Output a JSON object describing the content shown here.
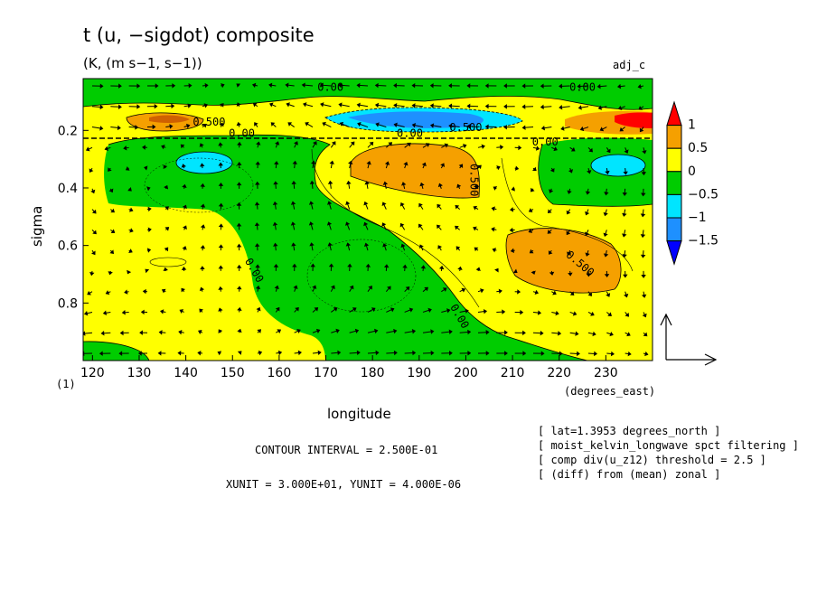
{
  "header": {
    "title": "t (u, −sigdot) composite",
    "subtitle": "(K, (m s−1, s−1))",
    "tag": "adj_c"
  },
  "footer": {
    "contour_interval": "CONTOUR INTERVAL = 2.500E-01",
    "units": "XUNIT = 3.000E+01, YUNIT = 4.000E-06",
    "notes": [
      "[ lat=1.3953 degrees_north ]",
      "[ moist_kelvin_longwave spct filtering ]",
      "[ comp div(u_z12) threshold = 2.5 ]",
      "[ (diff) from (mean) zonal ]"
    ]
  },
  "chart_data": {
    "type": "heatmap",
    "title": "t (u, −sigdot) composite",
    "subtitle": "(K, (m s−1, s−1))",
    "xlabel": "longitude",
    "xunit_label": "(degrees_east)",
    "ylabel": "sigma",
    "y_corner_label": "(1)",
    "xlim": [
      118,
      240
    ],
    "ylim": [
      0.02,
      1.0
    ],
    "y_inverted": true,
    "xticks": [
      120,
      130,
      140,
      150,
      160,
      170,
      180,
      190,
      200,
      210,
      220,
      230
    ],
    "yticks": [
      0.2,
      0.4,
      0.6,
      0.8
    ],
    "contour_interval": 0.25,
    "contour_labels": [
      {
        "text": "0.00",
        "x": 171,
        "y": 0.05
      },
      {
        "text": "0.00",
        "x": 225,
        "y": 0.05
      },
      {
        "text": "0.500",
        "x": 145,
        "y": 0.17
      },
      {
        "text": "0.00",
        "x": 152,
        "y": 0.21
      },
      {
        "text": "0.00",
        "x": 188,
        "y": 0.21
      },
      {
        "text": "0.500",
        "x": 200,
        "y": 0.19
      },
      {
        "text": "0.00",
        "x": 217,
        "y": 0.24
      },
      {
        "text": "0.500",
        "x": 201,
        "y": 0.36
      },
      {
        "text": "0.00",
        "x": 154,
        "y": 0.68
      },
      {
        "text": "0.500",
        "x": 224,
        "y": 0.66
      },
      {
        "text": "0.00",
        "x": 198,
        "y": 0.84
      }
    ],
    "colorbar": {
      "levels": [
        "1",
        "0.5",
        "0",
        "−0.5",
        "−1",
        "−1.5"
      ],
      "colors": [
        "#ff0000",
        "#f5a000",
        "#ffff00",
        "#00cc00",
        "#00e5ff",
        "#1e90ff",
        "#0000ff"
      ]
    },
    "regions": [
      {
        "value_class": "0 to 0.5",
        "color": "#ffff00",
        "desc": "background positive anomaly"
      },
      {
        "value_class": "-0.5 to 0",
        "color": "#00cc00",
        "desc": "upper-level band near sigma 0.05-0.12"
      },
      {
        "value_class": "-0.5 to 0",
        "color": "#00cc00",
        "desc": "western mid-level tongue from 125 to 215 degrees_east"
      },
      {
        "value_class": "-0.5 to 0",
        "color": "#00cc00",
        "desc": "eastern mid-level region 212-240 degrees_east"
      },
      {
        "value_class": "-1 to -0.5",
        "color": "#00e5ff",
        "desc": "cold core near 145E sigma 0.3"
      },
      {
        "value_class": "-1 to -0.5",
        "color": "#00e5ff",
        "desc": "cold core near 232E sigma 0.3"
      },
      {
        "value_class": "-1.5 to -1",
        "color": "#1e90ff",
        "desc": "upper cold band near 185E sigma 0.15"
      },
      {
        "value_class": "0.5 to 1",
        "color": "#f5a000",
        "desc": "warm core near 188E sigma 0.3"
      },
      {
        "value_class": "0.5 to 1",
        "color": "#f5a000",
        "desc": "warm core near 222E sigma 0.65"
      },
      {
        "value_class": "0.5 to 1",
        "color": "#f5a000",
        "desc": "upper warm lens near 142E sigma 0.15"
      },
      {
        "value_class": "> 1",
        "color": "#ff0000",
        "desc": "upper warm core near 235E sigma 0.15"
      }
    ],
    "vector_field": {
      "x_unit": "3.000E+01",
      "y_unit": "4.000E-06",
      "grid": "u, -sigdot arrows"
    }
  }
}
